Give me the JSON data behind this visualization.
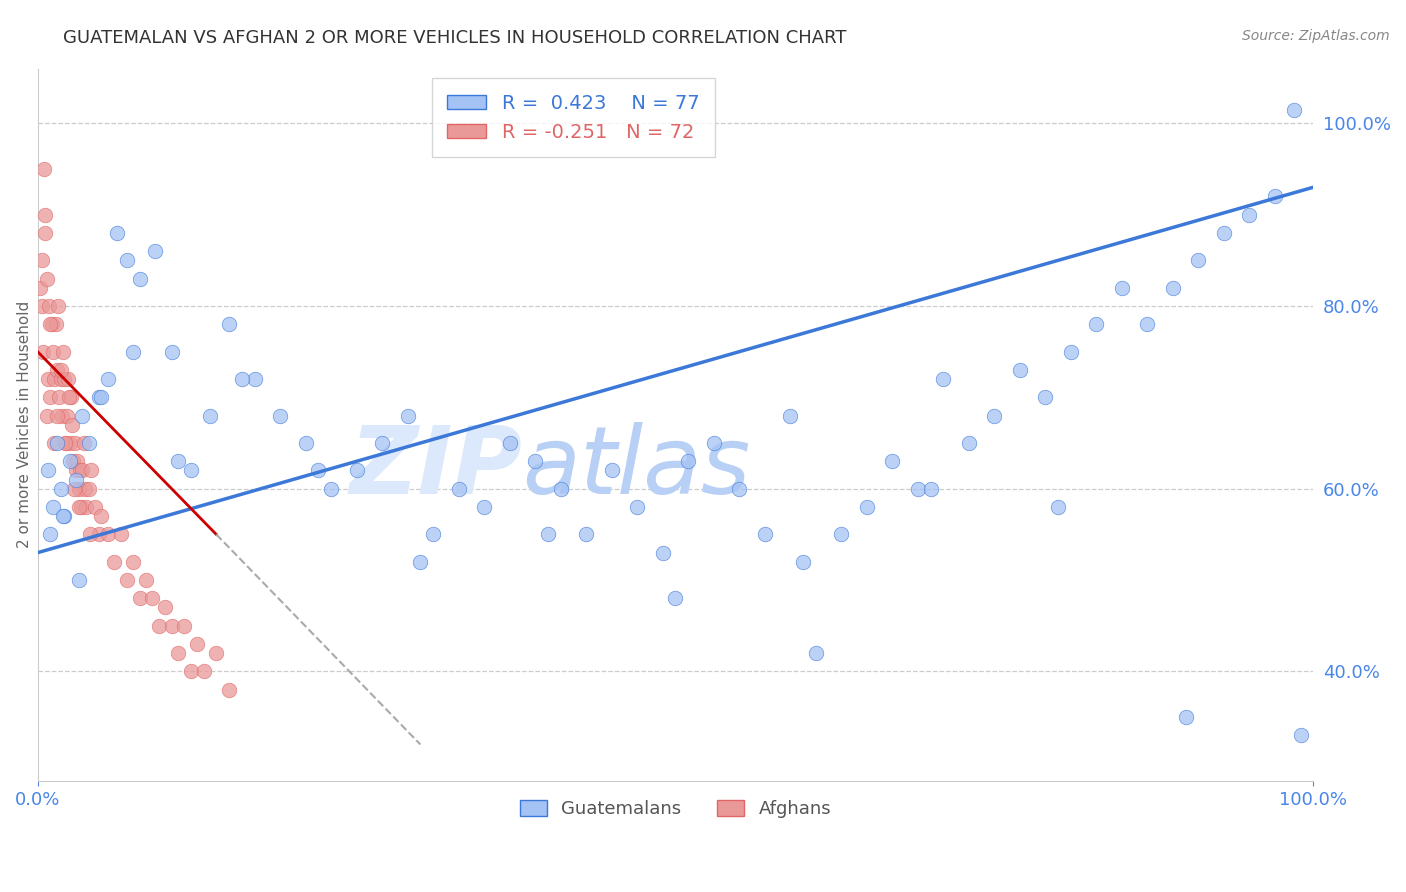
{
  "title": "GUATEMALAN VS AFGHAN 2 OR MORE VEHICLES IN HOUSEHOLD CORRELATION CHART",
  "source": "Source: ZipAtlas.com",
  "ylabel": "2 or more Vehicles in Household",
  "xlim": [
    0.0,
    100.0
  ],
  "ylim": [
    28.0,
    106.0
  ],
  "y_tick_vals": [
    40.0,
    60.0,
    80.0,
    100.0
  ],
  "blue_color": "#a4c2f4",
  "blue_edge_color": "#3c78d8",
  "pink_color": "#ea9999",
  "pink_edge_color": "#e06666",
  "blue_line_color": "#3c78d8",
  "pink_line_color": "#cc0000",
  "pink_dash_color": "#aaaaaa",
  "axis_color": "#4a86e8",
  "watermark_color": "#c9daf8",
  "blue_line_y0": 53.0,
  "blue_line_y1": 93.0,
  "pink_solid_x0": 0.0,
  "pink_solid_y0": 75.0,
  "pink_solid_x1": 14.0,
  "pink_solid_y1": 55.0,
  "pink_dash_x0": 14.0,
  "pink_dash_y0": 55.0,
  "pink_dash_x1": 30.0,
  "pink_dash_y1": 32.0,
  "guatemalan_x": [
    0.8,
    1.2,
    1.5,
    1.8,
    2.1,
    2.5,
    3.0,
    3.5,
    4.0,
    4.8,
    5.5,
    6.2,
    7.0,
    8.0,
    9.2,
    10.5,
    12.0,
    13.5,
    15.0,
    17.0,
    19.0,
    21.0,
    23.0,
    25.0,
    27.0,
    29.0,
    31.0,
    33.0,
    35.0,
    37.0,
    39.0,
    41.0,
    43.0,
    45.0,
    47.0,
    49.0,
    51.0,
    53.0,
    55.0,
    57.0,
    59.0,
    61.0,
    63.0,
    65.0,
    67.0,
    69.0,
    71.0,
    73.0,
    75.0,
    77.0,
    79.0,
    81.0,
    83.0,
    85.0,
    87.0,
    89.0,
    91.0,
    93.0,
    95.0,
    97.0,
    1.0,
    2.0,
    3.2,
    5.0,
    7.5,
    11.0,
    16.0,
    22.0,
    30.0,
    40.0,
    50.0,
    60.0,
    70.0,
    80.0,
    90.0,
    99.0,
    98.5
  ],
  "guatemalan_y": [
    62.0,
    58.0,
    65.0,
    60.0,
    57.0,
    63.0,
    61.0,
    68.0,
    65.0,
    70.0,
    72.0,
    88.0,
    85.0,
    83.0,
    86.0,
    75.0,
    62.0,
    68.0,
    78.0,
    72.0,
    68.0,
    65.0,
    60.0,
    62.0,
    65.0,
    68.0,
    55.0,
    60.0,
    58.0,
    65.0,
    63.0,
    60.0,
    55.0,
    62.0,
    58.0,
    53.0,
    63.0,
    65.0,
    60.0,
    55.0,
    68.0,
    42.0,
    55.0,
    58.0,
    63.0,
    60.0,
    72.0,
    65.0,
    68.0,
    73.0,
    70.0,
    75.0,
    78.0,
    82.0,
    78.0,
    82.0,
    85.0,
    88.0,
    90.0,
    92.0,
    55.0,
    57.0,
    50.0,
    70.0,
    75.0,
    63.0,
    72.0,
    62.0,
    52.0,
    55.0,
    48.0,
    52.0,
    60.0,
    58.0,
    35.0,
    33.0,
    101.5
  ],
  "afghan_x": [
    0.2,
    0.3,
    0.4,
    0.5,
    0.6,
    0.7,
    0.8,
    0.9,
    1.0,
    1.1,
    1.2,
    1.3,
    1.4,
    1.5,
    1.6,
    1.7,
    1.8,
    1.9,
    2.0,
    2.1,
    2.2,
    2.3,
    2.4,
    2.5,
    2.6,
    2.7,
    2.8,
    2.9,
    3.0,
    3.1,
    3.2,
    3.3,
    3.4,
    3.5,
    3.6,
    3.7,
    3.8,
    4.0,
    4.2,
    4.5,
    4.8,
    5.0,
    5.5,
    6.0,
    6.5,
    7.0,
    7.5,
    8.0,
    8.5,
    9.0,
    9.5,
    10.0,
    10.5,
    11.0,
    11.5,
    12.0,
    12.5,
    13.0,
    14.0,
    15.0,
    0.35,
    0.55,
    0.75,
    0.95,
    1.25,
    1.55,
    1.85,
    2.15,
    2.45,
    2.85,
    3.25,
    4.1
  ],
  "afghan_y": [
    82.0,
    80.0,
    75.0,
    95.0,
    88.0,
    68.0,
    72.0,
    80.0,
    70.0,
    78.0,
    75.0,
    72.0,
    78.0,
    73.0,
    80.0,
    70.0,
    72.0,
    68.0,
    75.0,
    72.0,
    65.0,
    68.0,
    72.0,
    65.0,
    70.0,
    67.0,
    63.0,
    65.0,
    62.0,
    63.0,
    60.0,
    62.0,
    58.0,
    62.0,
    65.0,
    60.0,
    58.0,
    60.0,
    62.0,
    58.0,
    55.0,
    57.0,
    55.0,
    52.0,
    55.0,
    50.0,
    52.0,
    48.0,
    50.0,
    48.0,
    45.0,
    47.0,
    45.0,
    42.0,
    45.0,
    40.0,
    43.0,
    40.0,
    42.0,
    38.0,
    85.0,
    90.0,
    83.0,
    78.0,
    65.0,
    68.0,
    73.0,
    65.0,
    70.0,
    60.0,
    58.0,
    55.0
  ]
}
